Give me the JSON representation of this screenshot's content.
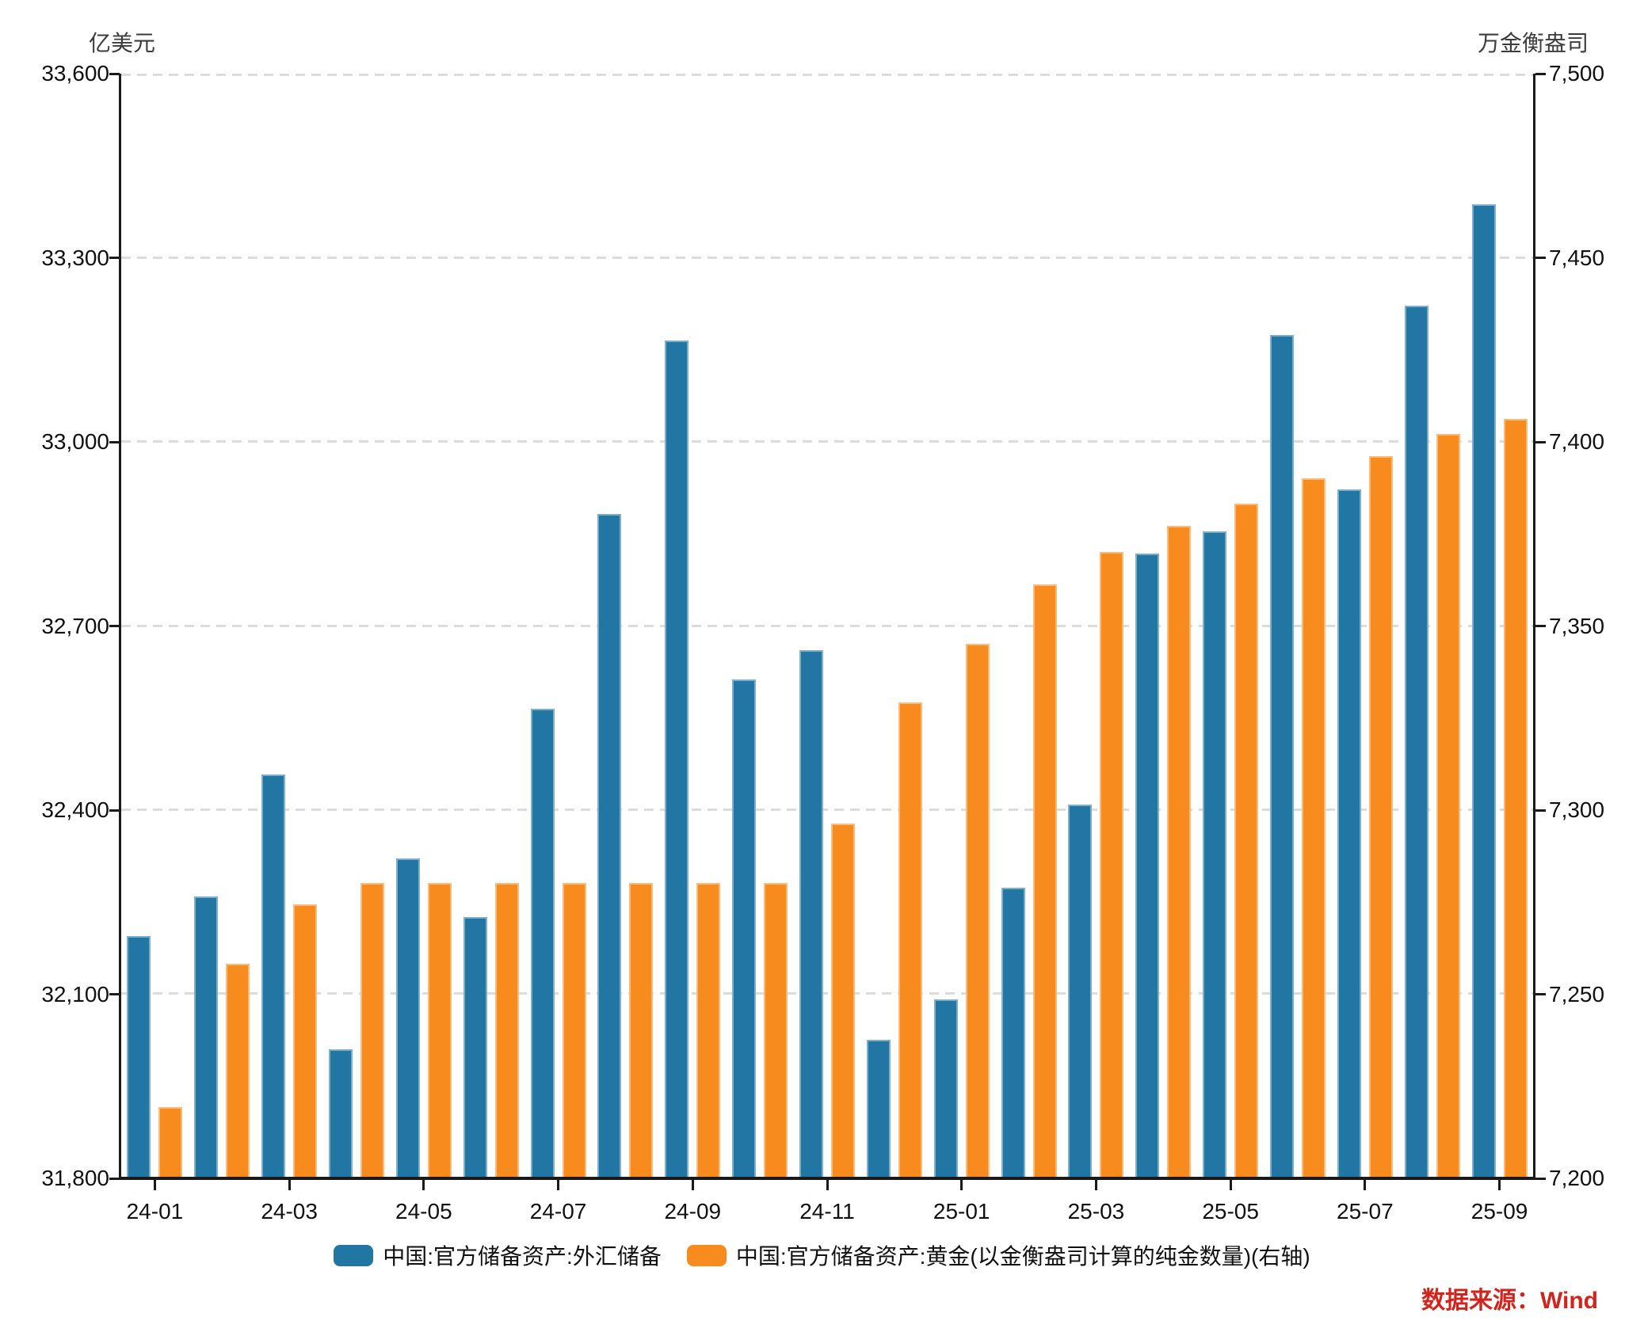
{
  "chart": {
    "left_axis_title": "亿美元",
    "right_axis_title": "万金衡盎司",
    "source_note": "数据来源：Wind",
    "colors": {
      "fx_blue": "#2276a4",
      "gold_orange": "#f78b1e",
      "source_red": "#d0241c",
      "gridline_gray": "#dcdcdc",
      "axis_black": "#1a1a1a"
    }
  },
  "chart_data": {
    "type": "bar",
    "title": "",
    "categories": [
      "24-01",
      "24-02",
      "24-03",
      "24-04",
      "24-05",
      "24-06",
      "24-07",
      "24-08",
      "24-09",
      "24-10",
      "24-11",
      "24-12",
      "25-01",
      "25-02",
      "25-03",
      "25-04",
      "25-05",
      "25-06",
      "25-07",
      "25-08",
      "25-09"
    ],
    "x_tick_labels": [
      "24-01",
      "24-03",
      "24-05",
      "24-07",
      "24-09",
      "24-11",
      "25-01",
      "25-03",
      "25-05",
      "25-07",
      "25-09"
    ],
    "series": [
      {
        "name": "中国:官方储备资产:外汇储备",
        "axis": "left",
        "color": "#2276a4",
        "values": [
          32193,
          32258,
          32457,
          32008,
          32320,
          32224,
          32564,
          32882,
          33164,
          32611,
          32659,
          32024,
          32090,
          32272,
          32407,
          32817,
          32853,
          33174,
          32922,
          33222,
          33387
        ]
      },
      {
        "name": "中国:官方储备资产:黄金(以金衡盎司计算的纯金数量)(右轴)",
        "axis": "right",
        "color": "#f78b1e",
        "values": [
          7219,
          7258,
          7274,
          7280,
          7280,
          7280,
          7280,
          7280,
          7280,
          7280,
          7296,
          7329,
          7345,
          7361,
          7370,
          7377,
          7383,
          7390,
          7396,
          7402,
          7406
        ]
      }
    ],
    "left_axis": {
      "title": "亿美元",
      "min": 31800,
      "max": 33600,
      "step": 300,
      "tick_labels": [
        "33,600",
        "33,300",
        "33,000",
        "32,700",
        "32,400",
        "32,100",
        "31,800"
      ]
    },
    "right_axis": {
      "title": "万金衡盎司",
      "min": 7200,
      "max": 7500,
      "step": 50,
      "tick_labels": [
        "7,500",
        "7,450",
        "7,400",
        "7,350",
        "7,300",
        "7,250",
        "7,200"
      ]
    },
    "grid": "horizontal-dashed",
    "legend_position": "bottom"
  }
}
